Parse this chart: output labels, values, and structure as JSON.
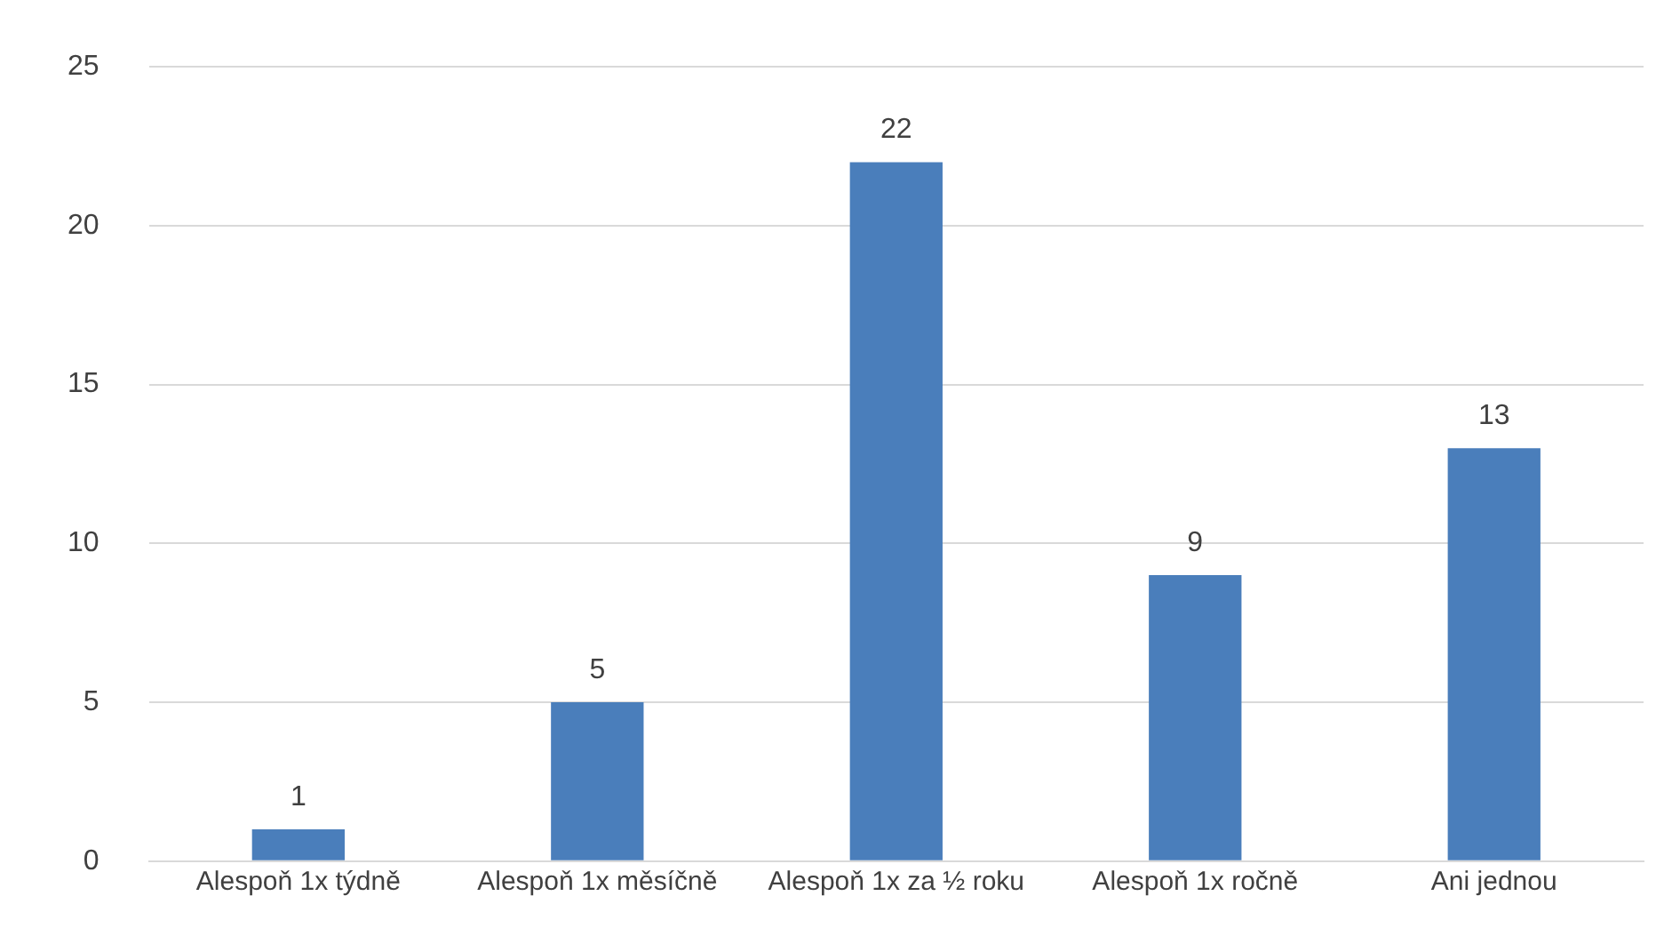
{
  "chart_data": {
    "type": "bar",
    "categories": [
      "Alespoň 1x týdně",
      "Alespoň 1x měsíčně",
      "Alespoň 1x za ½ roku",
      "Alespoň 1x ročně",
      "Ani jednou"
    ],
    "values": [
      1,
      5,
      22,
      9,
      13
    ],
    "color": "#4a7ebb",
    "ylim": [
      0,
      25
    ],
    "yticks": [
      0,
      5,
      10,
      15,
      20,
      25
    ],
    "grid": "y",
    "data_labels": true,
    "legend": false
  }
}
